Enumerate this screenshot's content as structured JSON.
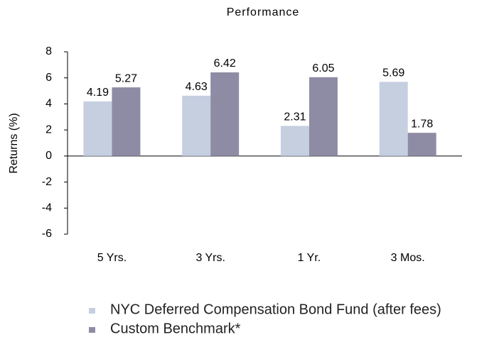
{
  "chart_data": {
    "type": "bar",
    "title": "Performance",
    "y_label": "Returns (%)",
    "categories": [
      "5 Yrs.",
      "3 Yrs.",
      "1 Yr.",
      "3 Mos."
    ],
    "series": [
      {
        "name": "NYC Deferred Compensation Bond Fund (after fees)",
        "color": "#c5cfe0",
        "values": [
          4.19,
          4.63,
          2.31,
          5.69
        ]
      },
      {
        "name": "Custom Benchmark*",
        "color": "#8e8ca4",
        "values": [
          5.27,
          6.42,
          6.05,
          1.78
        ]
      }
    ],
    "ylim": [
      -6,
      8
    ],
    "yticks": [
      -6,
      -4,
      -2,
      0,
      2,
      4,
      6,
      8
    ],
    "grid": false
  }
}
